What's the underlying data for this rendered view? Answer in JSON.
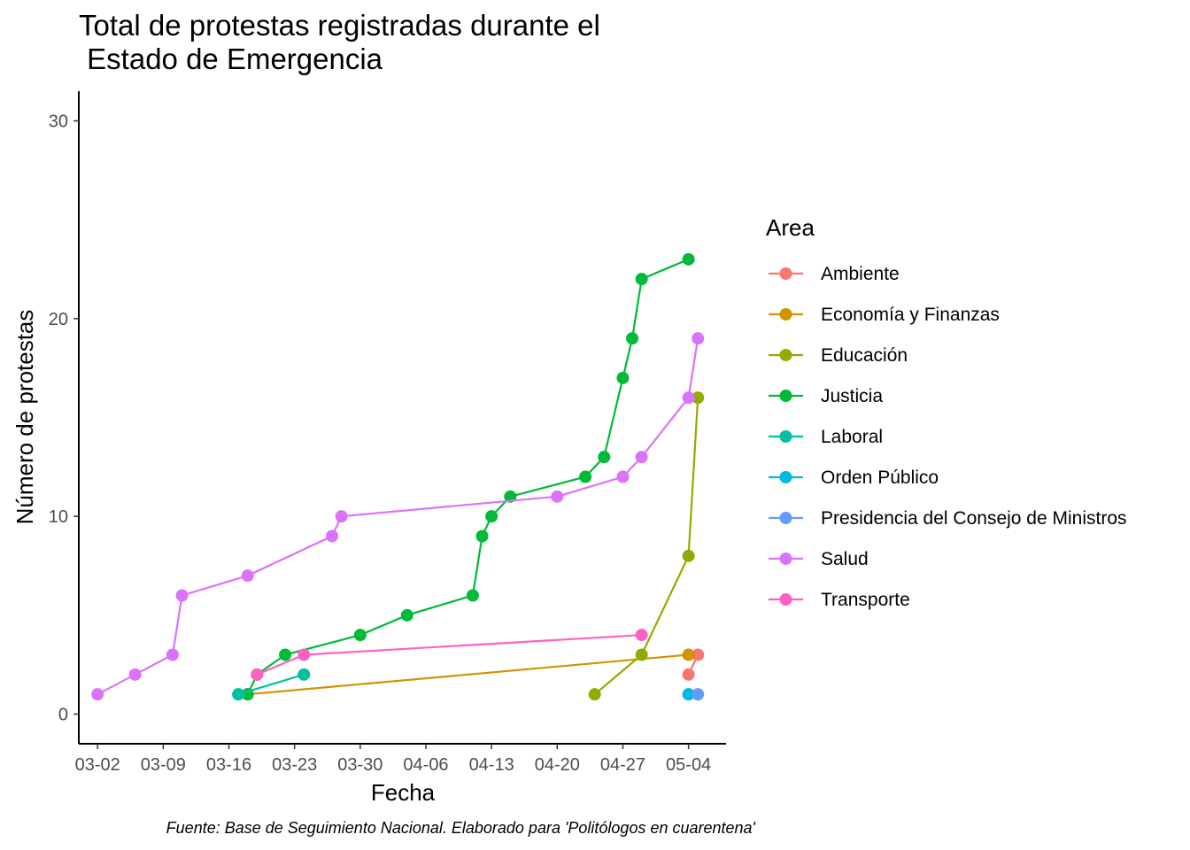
{
  "chart_data": {
    "type": "line",
    "title_lines": [
      "Total de protestas registradas durante el",
      " Estado de Emergencia"
    ],
    "xlabel": "Fecha",
    "ylabel": "Número de protestas",
    "caption": "Fuente: Base de Seguimiento Nacional. Elaborado para 'Politólogos en cuarentena'",
    "legend_title": "Area",
    "legend_position": "right",
    "grid": false,
    "x_ticks": [
      "2020-03-02",
      "2020-03-09",
      "2020-03-16",
      "2020-03-23",
      "2020-03-30",
      "2020-04-06",
      "2020-04-13",
      "2020-04-20",
      "2020-04-27",
      "2020-05-04"
    ],
    "x_tick_labels": [
      "03-02",
      "03-09",
      "03-16",
      "03-23",
      "03-30",
      "04-06",
      "04-13",
      "04-20",
      "04-27",
      "05-04"
    ],
    "xlim": [
      "2020-02-29",
      "2020-05-08"
    ],
    "y_ticks": [
      0,
      10,
      20,
      30
    ],
    "ylim": [
      -1.5,
      31.5
    ],
    "series": [
      {
        "name": "Ambiente",
        "color": "#F8766D",
        "points": [
          [
            "2020-05-04",
            2
          ],
          [
            "2020-05-05",
            3
          ]
        ]
      },
      {
        "name": "Economía y Finanzas",
        "color": "#D39200",
        "points": [
          [
            "2020-03-18",
            1
          ],
          [
            "2020-05-04",
            3
          ]
        ]
      },
      {
        "name": "Educación",
        "color": "#93AA00",
        "points": [
          [
            "2020-04-24",
            1
          ],
          [
            "2020-04-29",
            3
          ],
          [
            "2020-05-04",
            8
          ],
          [
            "2020-05-05",
            16
          ]
        ]
      },
      {
        "name": "Justicia",
        "color": "#00BA38",
        "points": [
          [
            "2020-03-18",
            1
          ],
          [
            "2020-03-19",
            2
          ],
          [
            "2020-03-22",
            3
          ],
          [
            "2020-03-30",
            4
          ],
          [
            "2020-04-04",
            5
          ],
          [
            "2020-04-11",
            6
          ],
          [
            "2020-04-12",
            9
          ],
          [
            "2020-04-13",
            10
          ],
          [
            "2020-04-15",
            11
          ],
          [
            "2020-04-23",
            12
          ],
          [
            "2020-04-25",
            13
          ],
          [
            "2020-04-27",
            17
          ],
          [
            "2020-04-28",
            19
          ],
          [
            "2020-04-29",
            22
          ],
          [
            "2020-05-04",
            23
          ]
        ]
      },
      {
        "name": "Laboral",
        "color": "#00C19F",
        "points": [
          [
            "2020-03-17",
            1
          ],
          [
            "2020-03-24",
            2
          ]
        ]
      },
      {
        "name": "Orden Público",
        "color": "#00B9E3",
        "points": [
          [
            "2020-05-04",
            1
          ]
        ]
      },
      {
        "name": "Presidencia del Consejo de Ministros",
        "color": "#619CFF",
        "points": [
          [
            "2020-05-05",
            1
          ]
        ]
      },
      {
        "name": "Salud",
        "color": "#DB72FB",
        "points": [
          [
            "2020-03-02",
            1
          ],
          [
            "2020-03-06",
            2
          ],
          [
            "2020-03-10",
            3
          ],
          [
            "2020-03-11",
            6
          ],
          [
            "2020-03-18",
            7
          ],
          [
            "2020-03-27",
            9
          ],
          [
            "2020-03-28",
            10
          ],
          [
            "2020-04-20",
            11
          ],
          [
            "2020-04-27",
            12
          ],
          [
            "2020-04-29",
            13
          ],
          [
            "2020-05-04",
            16
          ],
          [
            "2020-05-05",
            19
          ]
        ]
      },
      {
        "name": "Transporte",
        "color": "#FF61C3",
        "points": [
          [
            "2020-03-19",
            2
          ],
          [
            "2020-03-24",
            3
          ],
          [
            "2020-04-29",
            4
          ]
        ]
      }
    ]
  },
  "colors": {
    "axis": "#000000",
    "tick_text": "#4d4d4d",
    "background": "#ffffff"
  }
}
